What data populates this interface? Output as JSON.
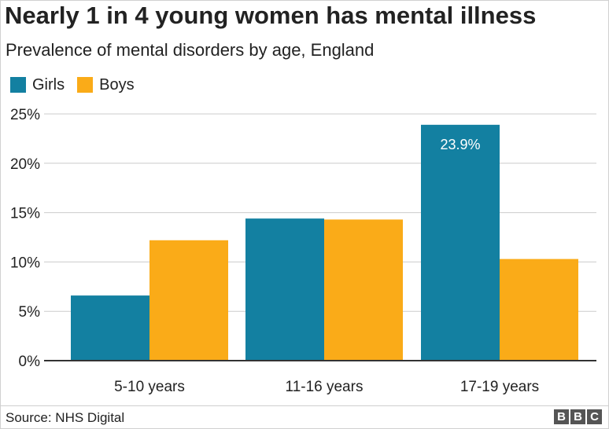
{
  "header": {
    "title": "Nearly 1 in 4 young women has mental illness",
    "subtitle": "Prevalence of mental disorders by age, England"
  },
  "footer": {
    "source": "Source: NHS Digital",
    "logo_letters": [
      "B",
      "B",
      "C"
    ]
  },
  "colors": {
    "girls": "#1380A1",
    "boys": "#FAAB18",
    "axis": "#333333",
    "grid": "#cbcbcb",
    "text": "#222222"
  },
  "chart_data": {
    "type": "bar",
    "title": "Nearly 1 in 4 young women has mental illness",
    "subtitle": "Prevalence of mental disorders by age, England",
    "categories": [
      "5-10 years",
      "11-16 years",
      "17-19 years"
    ],
    "series": [
      {
        "name": "Girls",
        "values": [
          6.6,
          14.4,
          23.9
        ],
        "color": "#1380A1"
      },
      {
        "name": "Boys",
        "values": [
          12.2,
          14.3,
          10.3
        ],
        "color": "#FAAB18"
      }
    ],
    "yticks": [
      "0%",
      "5%",
      "10%",
      "15%",
      "20%",
      "25%"
    ],
    "ylim": [
      0,
      25
    ],
    "grid": true,
    "legend_position": "top-left",
    "annotations": [
      {
        "series": "Girls",
        "category": "17-19 years",
        "text": "23.9%"
      }
    ],
    "xlabel": "",
    "ylabel": ""
  }
}
